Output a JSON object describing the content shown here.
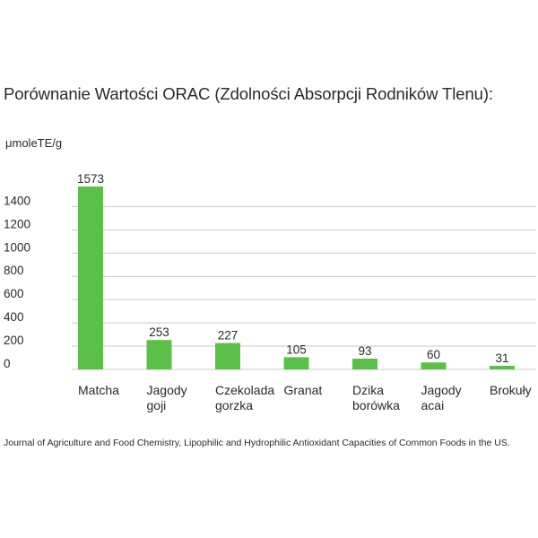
{
  "chart_data": {
    "type": "bar",
    "title": "Porównanie Wartości ORAC (Zdolności Absorpcji Rodników Tlenu):",
    "ylabel": "μmoleTE/g",
    "xlabel": "",
    "categories": [
      "Matcha",
      "Jagody goji",
      "Czekolada gorzka",
      "Granat",
      "Dzika borówka",
      "Jagody acai",
      "Brokuły"
    ],
    "category_lines": [
      [
        "Matcha"
      ],
      [
        "Jagody",
        "goji"
      ],
      [
        "Czekolada",
        "gorzka"
      ],
      [
        "Granat"
      ],
      [
        "Dzika",
        "borówka"
      ],
      [
        "Jagody",
        "acai"
      ],
      [
        "Brokuły"
      ]
    ],
    "values": [
      1573,
      253,
      227,
      105,
      93,
      60,
      31
    ],
    "value_labels": [
      "1573",
      "253",
      "227",
      "105",
      "93",
      "60",
      "31"
    ],
    "yticks": [
      0,
      200,
      400,
      600,
      800,
      1000,
      1200,
      1400
    ],
    "ylim": [
      0,
      1573
    ],
    "grid": true,
    "bar_color": "#5cbf4a",
    "source": "Journal of Agriculture and Food Chemistry, Lipophilic and Hydrophilic Antioxidant Capacities of Common Foods in the US."
  }
}
